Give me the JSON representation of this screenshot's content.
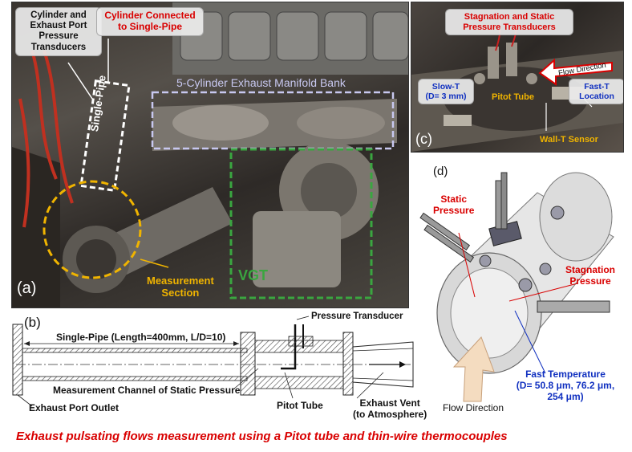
{
  "panel_a": {
    "tag": "(a)",
    "callout_left": "Cylinder and\nExhaust Port\nPressure\nTransducers",
    "callout_right": "Cylinder Connected\nto Single-Pipe",
    "single_pipe": "Single-Pipe",
    "manifold": "5-Cylinder Exhaust Manifold Bank",
    "vgt": "VGT",
    "measurement": "Measurement\nSection"
  },
  "panel_c": {
    "tag": "(c)",
    "transducers": "Stagnation and Static\nPressure Transducers",
    "flow_direction": "Flow Direction",
    "slow_t": "Slow-T\n(D= 3 mm)",
    "pitot": "Pitot Tube",
    "fast_t": "Fast-T\nLocation",
    "wall_t": "Wall-T Sensor"
  },
  "panel_b": {
    "tag": "(b)",
    "pressure_transducer": "Pressure Transducer",
    "single_pipe": "Single-Pipe (Length=400mm, L/D=10)",
    "measurement_channel": "Measurement Channel of Static Pressure",
    "exhaust_port_outlet": "Exhaust Port Outlet",
    "pitot_tube": "Pitot Tube",
    "exhaust_vent": "Exhaust Vent\n(to Atmosphere)"
  },
  "panel_d": {
    "tag": "(d)",
    "static_pressure": "Static\nPressure",
    "stagnation_pressure": "Stagnation\nPressure",
    "fast_temperature": "Fast Temperature\n(D= 50.8 μm, 76.2 μm,\n254 μm)",
    "flow_direction": "Flow Direction"
  },
  "caption": "Exhaust pulsating flows measurement using a Pitot tube and thin-wire thermocouples",
  "colors": {
    "red": "#d90000",
    "blue": "#1030c0",
    "yellow": "#f0b400",
    "green": "#3aa640",
    "white": "#ffffff"
  }
}
